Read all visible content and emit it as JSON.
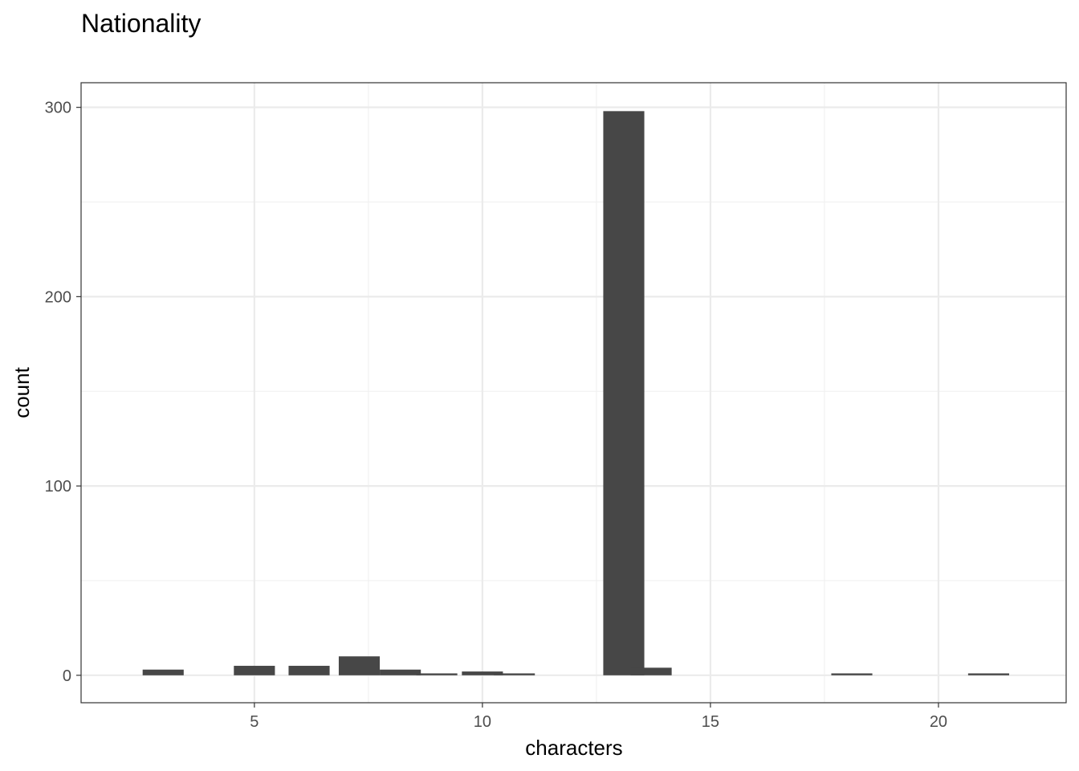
{
  "chart_data": {
    "type": "bar",
    "title": "Nationality",
    "xlabel": "characters",
    "ylabel": "count",
    "x": [
      3,
      5,
      6.2,
      7.3,
      8.2,
      9,
      10,
      10.7,
      13.1,
      13.7,
      18.1,
      21.1
    ],
    "values": [
      3,
      5,
      5,
      10,
      3,
      1,
      2,
      1,
      298,
      4,
      1,
      1
    ],
    "xlim": [
      1.2,
      22.8
    ],
    "ylim": [
      -14.5,
      313
    ],
    "x_major_ticks": [
      5,
      10,
      15,
      20
    ],
    "x_tick_labels": [
      "5",
      "10",
      "15",
      "20"
    ],
    "x_minor_ticks": [
      7.5,
      12.5,
      17.5
    ],
    "y_major_ticks": [
      0,
      100,
      200,
      300
    ],
    "y_tick_labels": [
      "0",
      "100",
      "200",
      "300"
    ],
    "y_minor_ticks": [
      50,
      150,
      250
    ],
    "bar_color": "#474747",
    "grid": true,
    "legend": "none"
  }
}
